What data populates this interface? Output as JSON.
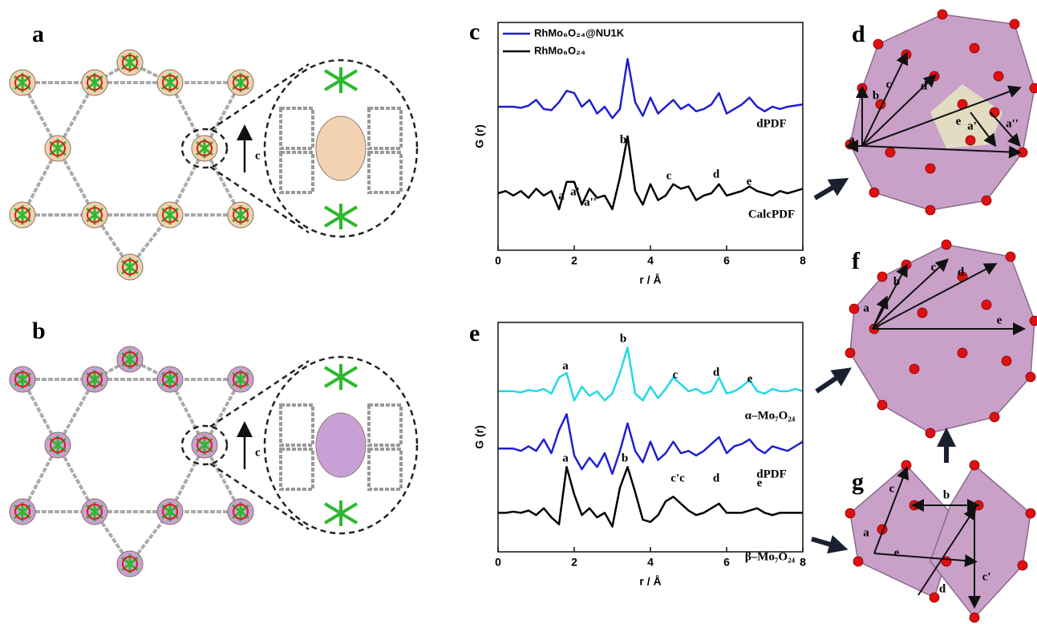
{
  "chart_data": [
    {
      "type": "line",
      "x_label": "r / Å",
      "y_label": "G (r)",
      "x": [
        0,
        0.2,
        0.4,
        0.6,
        0.8,
        1.0,
        1.2,
        1.4,
        1.6,
        1.8,
        2.0,
        2.2,
        2.4,
        2.6,
        2.8,
        3.0,
        3.2,
        3.4,
        3.6,
        3.8,
        4.0,
        4.2,
        4.4,
        4.6,
        4.8,
        5.0,
        5.2,
        5.4,
        5.6,
        5.8,
        6.0,
        6.2,
        6.4,
        6.6,
        6.8,
        7.0,
        7.2,
        7.4,
        7.6,
        7.8,
        8.0
      ],
      "xlim": [
        0,
        8
      ],
      "xticks": [
        0,
        2,
        4,
        6,
        8
      ],
      "ylim": [
        0,
        10
      ],
      "series": [
        {
          "name": "RhMo₆O₂₄@NU1K",
          "color": "#1f1fd0",
          "values": [
            6.3,
            6.3,
            6.3,
            6.25,
            6.35,
            6.6,
            6.2,
            6.15,
            6.5,
            7.0,
            6.9,
            6.3,
            6.6,
            6.0,
            6.3,
            5.8,
            6.2,
            8.4,
            6.5,
            5.9,
            6.7,
            6.0,
            6.3,
            6.6,
            6.2,
            6.4,
            6.1,
            6.2,
            6.4,
            6.9,
            6.0,
            6.2,
            6.4,
            6.7,
            6.3,
            6.1,
            6.3,
            6.2,
            6.3,
            6.35,
            6.4
          ]
        },
        {
          "name": "RhMo₆O₂₄",
          "color": "#000000",
          "values": [
            2.5,
            2.6,
            2.4,
            2.6,
            2.3,
            2.7,
            2.4,
            2.6,
            1.8,
            3.0,
            3.0,
            2.0,
            2.7,
            2.3,
            2.4,
            1.8,
            3.2,
            5.0,
            2.6,
            2.0,
            2.9,
            2.2,
            2.4,
            2.9,
            2.7,
            2.8,
            2.2,
            2.4,
            2.5,
            2.9,
            2.4,
            2.5,
            2.6,
            2.8,
            2.6,
            2.5,
            2.4,
            2.6,
            2.5,
            2.6,
            2.7
          ]
        }
      ],
      "annotations": [
        "a",
        "a'",
        "a''",
        "b",
        "c",
        "d",
        "e",
        "dPDF",
        "CalcPDF"
      ]
    },
    {
      "type": "line",
      "x_label": "r / Å",
      "y_label": "G (r)",
      "x": [
        0,
        0.2,
        0.4,
        0.6,
        0.8,
        1.0,
        1.2,
        1.4,
        1.6,
        1.8,
        2.0,
        2.2,
        2.4,
        2.6,
        2.8,
        3.0,
        3.2,
        3.4,
        3.6,
        3.8,
        4.0,
        4.2,
        4.4,
        4.6,
        4.8,
        5.0,
        5.2,
        5.4,
        5.6,
        5.8,
        6.0,
        6.2,
        6.4,
        6.6,
        6.8,
        7.0,
        7.2,
        7.4,
        7.6,
        7.8,
        8.0
      ],
      "xlim": [
        0,
        8
      ],
      "xticks": [
        0,
        2,
        4,
        6,
        8
      ],
      "ylim": [
        0,
        10
      ],
      "series": [
        {
          "color": "#22d8e8",
          "values": [
            7.0,
            7.0,
            7.0,
            6.95,
            7.05,
            7.0,
            7.1,
            6.9,
            7.6,
            7.8,
            6.6,
            7.2,
            6.8,
            7.0,
            6.6,
            6.9,
            7.8,
            8.9,
            6.9,
            6.6,
            7.2,
            6.7,
            7.1,
            7.6,
            7.3,
            7.0,
            7.1,
            6.9,
            7.0,
            7.6,
            6.9,
            7.0,
            7.2,
            7.5,
            7.0,
            6.9,
            7.1,
            7.0,
            7.0,
            7.1,
            7.0
          ]
        },
        {
          "color": "#1f1fd0",
          "values": [
            4.5,
            4.5,
            4.5,
            4.4,
            4.6,
            4.4,
            4.9,
            4.3,
            5.3,
            6.0,
            4.2,
            3.6,
            4.1,
            3.7,
            4.3,
            3.4,
            4.4,
            5.6,
            4.4,
            3.9,
            4.8,
            4.0,
            4.3,
            4.8,
            4.3,
            4.4,
            4.2,
            4.4,
            4.7,
            5.0,
            4.3,
            4.6,
            4.7,
            4.9,
            4.5,
            4.3,
            4.6,
            4.5,
            4.4,
            4.6,
            4.8
          ]
        },
        {
          "color": "#000000",
          "values": [
            1.7,
            1.7,
            1.75,
            1.7,
            1.8,
            1.6,
            1.9,
            1.5,
            1.2,
            3.7,
            2.5,
            1.6,
            1.9,
            1.5,
            1.7,
            1.1,
            2.8,
            3.7,
            2.6,
            1.4,
            1.3,
            1.6,
            2.2,
            2.4,
            2.1,
            1.8,
            1.6,
            1.7,
            1.9,
            2.1,
            1.7,
            1.7,
            1.7,
            1.8,
            1.9,
            1.7,
            1.6,
            1.7,
            1.7,
            1.7,
            1.7
          ]
        }
      ],
      "annotations": [
        "a",
        "b",
        "c",
        "d",
        "e",
        "α–Mo₇O₂₄",
        "dPDF",
        "a",
        "b",
        "c'c",
        "d",
        "e",
        "β–Mo₇O₂₄"
      ]
    }
  ],
  "figure": {
    "panel_labels": [
      "a",
      "b",
      "c",
      "d",
      "e",
      "f",
      "g"
    ],
    "structure_axis_labels": [
      "c",
      "c"
    ],
    "diagram_d": [
      "a",
      "b",
      "c",
      "d",
      "e",
      "a'",
      "a''"
    ],
    "diagram_f": [
      "a",
      "b",
      "c",
      "d",
      "e"
    ],
    "diagram_g": [
      "a",
      "b",
      "c",
      "c'",
      "d",
      "e"
    ]
  }
}
